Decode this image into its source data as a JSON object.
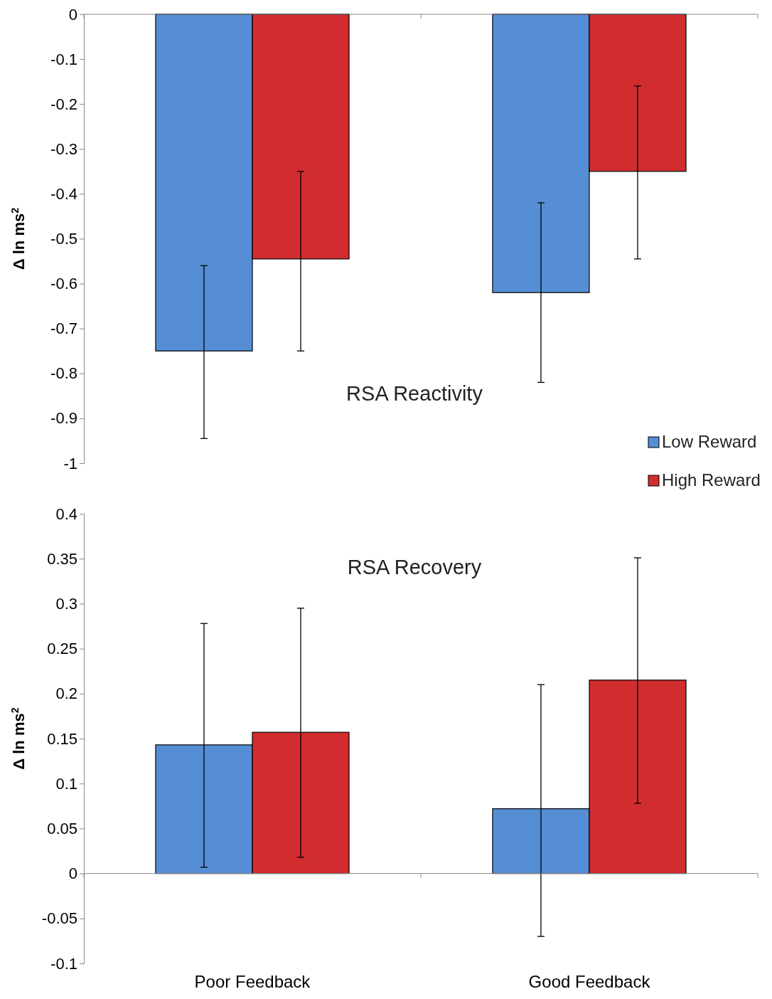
{
  "chart_data": [
    {
      "type": "bar",
      "title": "RSA Reactivity",
      "ylabel": "Δ ln ms$^{2}$",
      "categories": [
        null,
        null
      ],
      "ylim": [
        -1,
        0
      ],
      "yticks": [
        -1,
        {
          "value": -0.9,
          "label": "-0.9"
        },
        {
          "value": -0.8,
          "label": "-0.8"
        },
        {
          "value": -0.7,
          "label": "-0.7"
        },
        {
          "value": -0.6,
          "label": "-0.6"
        },
        {
          "value": -0.5,
          "label": "-0.5"
        },
        {
          "value": -0.4,
          "label": "-0.4"
        },
        {
          "value": -0.3,
          "label": "-0.3"
        },
        {
          "value": -0.2,
          "label": "-0.2"
        },
        {
          "value": -0.1,
          "label": "-0.1"
        },
        0
      ],
      "legend": "bottom right",
      "series": [
        {
          "name": "Low Reward",
          "color": "#558ed5",
          "values": [
            -0.75,
            -0.62
          ],
          "errors": [
            [
              -0.945,
              -0.56
            ],
            [
              -0.82,
              -0.42
            ]
          ]
        },
        {
          "name": "High Reward",
          "color": "#d12d2f",
          "values": [
            -0.545,
            -0.35
          ],
          "errors": [
            [
              -0.75,
              -0.35
            ],
            [
              -0.545,
              -0.16
            ]
          ]
        }
      ]
    },
    {
      "type": "bar",
      "title": "RSA Recovery",
      "ylabel": "Δ ln ms$^{2}$",
      "categories": [
        "Poor Feedback",
        "Good Feedback"
      ],
      "ylim": [
        -0.1,
        0.4
      ],
      "yticks": [
        -0.1,
        -0.05,
        0,
        0.05,
        0.1,
        0.15,
        0.2,
        0.25,
        0.3,
        0.35,
        0.4
      ],
      "legend": false,
      "series": [
        {
          "color": "#558ed5",
          "values": [
            0.143,
            0.072
          ],
          "errors": [
            [
              0.007,
              0.278
            ],
            [
              -0.07,
              0.21
            ]
          ]
        },
        {
          "color": "#d12d2f",
          "values": [
            0.157,
            0.215
          ],
          "errors": [
            [
              0.018,
              0.295
            ],
            [
              0.078,
              0.351
            ]
          ]
        }
      ]
    }
  ]
}
